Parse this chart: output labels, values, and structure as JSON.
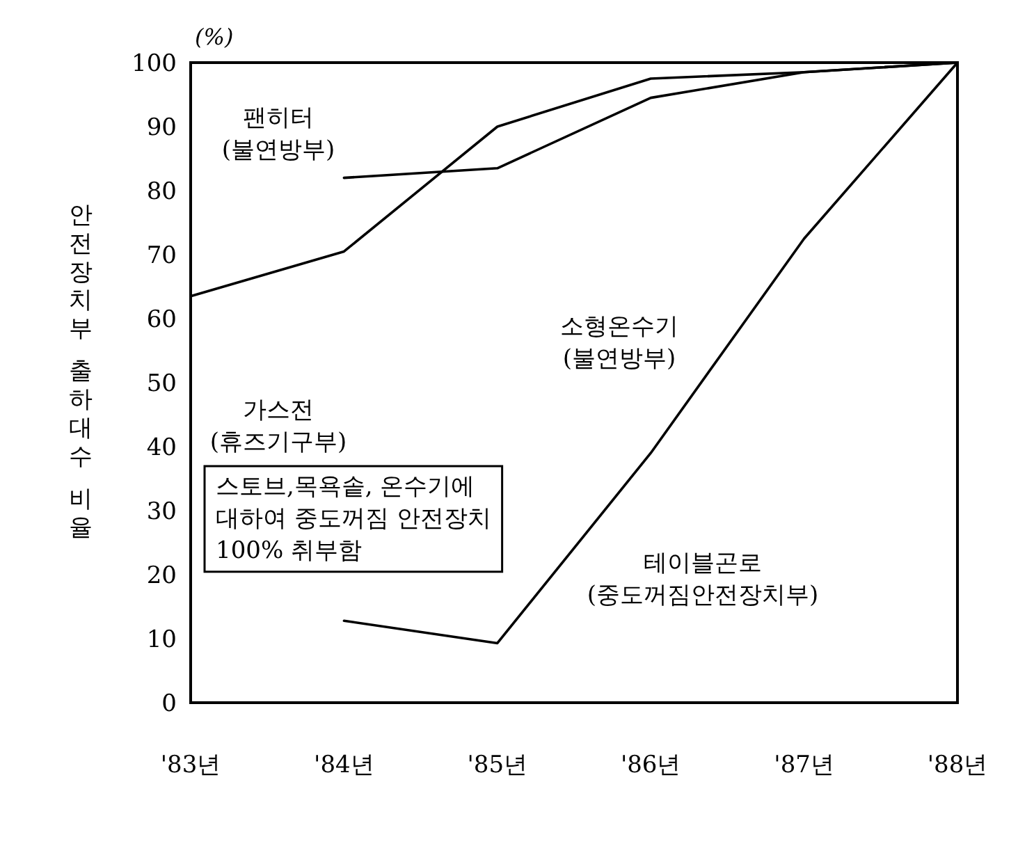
{
  "chart_data": {
    "type": "line",
    "ylabel": "안전장치부 출하대수 비율",
    "categories": [
      "'83년",
      "'84년",
      "'85년",
      "'86년",
      "'87년",
      "'88년"
    ],
    "ylim": [
      0,
      100
    ],
    "yticks": [
      0,
      10,
      20,
      30,
      40,
      50,
      60,
      70,
      80,
      90,
      100
    ],
    "series": [
      {
        "color": "#000000",
        "values": [
          63.5,
          70.5,
          90,
          97.5,
          98.5,
          100
        ]
      },
      {
        "color": "#000000",
        "values": [
          null,
          82,
          83.5,
          94.5,
          98.5,
          100
        ]
      },
      {
        "color": "#000000",
        "values": [
          null,
          12.8,
          9.3,
          39,
          72.5,
          100
        ]
      }
    ],
    "annotations": [
      "(%)",
      "팬히터\n(불연방부)",
      "소형온수기\n(불연방부)",
      "가스전\n(휴즈기구부)",
      "스토브,목욕솥, 온수기에\n대하여 중도꺼짐 안전장치\n100% 취부함",
      "테이블곤로\n(중도꺼짐안전장치부)"
    ],
    "grid": false,
    "marker": "none",
    "line_style": "solid"
  }
}
